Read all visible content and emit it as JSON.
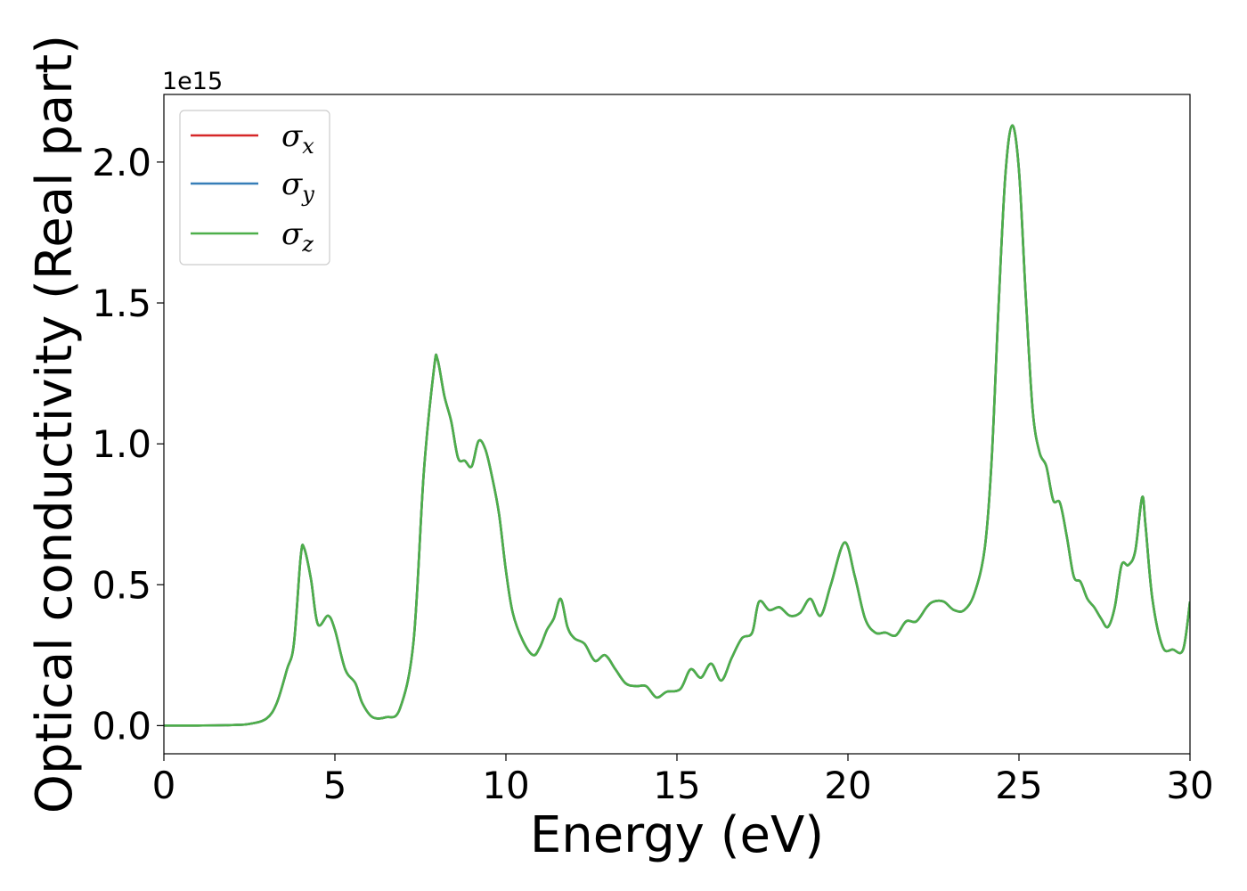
{
  "chart_data": {
    "type": "line",
    "xlabel": "Energy (eV)",
    "ylabel": "Optical conductivity (Real part)",
    "y_offset_text": "1e15",
    "xlim": [
      0,
      30
    ],
    "ylim": [
      -0.1,
      2.24
    ],
    "x_ticks": [
      0,
      5,
      10,
      15,
      20,
      25,
      30
    ],
    "x_tick_labels": [
      "0",
      "5",
      "10",
      "15",
      "20",
      "25",
      "30"
    ],
    "y_ticks": [
      0.0,
      0.5,
      1.0,
      1.5,
      2.0
    ],
    "y_tick_labels": [
      "0.0",
      "0.5",
      "1.0",
      "1.5",
      "2.0"
    ],
    "grid": false,
    "legend_position": "top-left",
    "colors": {
      "sigma_x": "#d62728",
      "sigma_y": "#377eb8",
      "sigma_z": "#4daf4a"
    },
    "legend": [
      {
        "symbol": "σ",
        "sub": "x",
        "color": "#d62728"
      },
      {
        "symbol": "σ",
        "sub": "y",
        "color": "#377eb8"
      },
      {
        "symbol": "σ",
        "sub": "z",
        "color": "#4daf4a"
      }
    ],
    "x": [
      0,
      1,
      2,
      2.5,
      3.0,
      3.3,
      3.6,
      3.8,
      4.0,
      4.1,
      4.3,
      4.5,
      4.8,
      5.0,
      5.3,
      5.6,
      5.8,
      6.1,
      6.5,
      6.9,
      7.3,
      7.6,
      7.9,
      8.0,
      8.2,
      8.4,
      8.6,
      8.8,
      9.0,
      9.2,
      9.4,
      9.6,
      9.8,
      10.0,
      10.2,
      10.5,
      10.8,
      11.0,
      11.2,
      11.4,
      11.6,
      11.8,
      12.0,
      12.3,
      12.6,
      12.9,
      13.2,
      13.5,
      13.8,
      14.1,
      14.4,
      14.7,
      15.1,
      15.4,
      15.7,
      16.0,
      16.3,
      16.6,
      16.9,
      17.2,
      17.4,
      17.7,
      18.0,
      18.3,
      18.6,
      18.9,
      19.2,
      19.5,
      19.9,
      20.2,
      20.5,
      20.8,
      21.1,
      21.4,
      21.7,
      22.0,
      22.3,
      22.5,
      22.8,
      23.1,
      23.4,
      23.7,
      24.0,
      24.2,
      24.4,
      24.6,
      24.8,
      25.0,
      25.2,
      25.4,
      25.6,
      25.8,
      26.0,
      26.2,
      26.4,
      26.6,
      26.8,
      27.0,
      27.2,
      27.4,
      27.6,
      27.8,
      28.0,
      28.2,
      28.4,
      28.6,
      28.7,
      28.9,
      29.2,
      29.5,
      29.8,
      30.0
    ],
    "series": [
      {
        "name": "σx",
        "values": [
          0,
          0.0003,
          0.002,
          0.006,
          0.025,
          0.08,
          0.2,
          0.29,
          0.6,
          0.63,
          0.52,
          0.36,
          0.39,
          0.34,
          0.2,
          0.15,
          0.08,
          0.03,
          0.03,
          0.06,
          0.3,
          0.9,
          1.27,
          1.3,
          1.17,
          1.08,
          0.95,
          0.94,
          0.92,
          1.01,
          0.98,
          0.88,
          0.75,
          0.55,
          0.4,
          0.3,
          0.25,
          0.28,
          0.34,
          0.38,
          0.45,
          0.35,
          0.31,
          0.29,
          0.23,
          0.25,
          0.2,
          0.15,
          0.14,
          0.14,
          0.1,
          0.12,
          0.13,
          0.2,
          0.17,
          0.22,
          0.16,
          0.24,
          0.31,
          0.33,
          0.44,
          0.41,
          0.42,
          0.39,
          0.4,
          0.45,
          0.39,
          0.5,
          0.65,
          0.53,
          0.38,
          0.33,
          0.33,
          0.32,
          0.37,
          0.37,
          0.42,
          0.44,
          0.44,
          0.41,
          0.41,
          0.47,
          0.63,
          0.94,
          1.48,
          1.95,
          2.13,
          1.97,
          1.52,
          1.12,
          0.97,
          0.92,
          0.8,
          0.79,
          0.67,
          0.53,
          0.51,
          0.45,
          0.42,
          0.38,
          0.35,
          0.42,
          0.57,
          0.57,
          0.62,
          0.81,
          0.71,
          0.45,
          0.28,
          0.27,
          0.27,
          0.44
        ]
      },
      {
        "name": "σy",
        "values": [
          0,
          0.0003,
          0.002,
          0.006,
          0.025,
          0.08,
          0.2,
          0.29,
          0.6,
          0.63,
          0.52,
          0.36,
          0.39,
          0.34,
          0.2,
          0.15,
          0.08,
          0.03,
          0.03,
          0.06,
          0.3,
          0.9,
          1.27,
          1.3,
          1.17,
          1.08,
          0.95,
          0.94,
          0.92,
          1.01,
          0.98,
          0.88,
          0.75,
          0.55,
          0.4,
          0.3,
          0.25,
          0.28,
          0.34,
          0.38,
          0.45,
          0.35,
          0.31,
          0.29,
          0.23,
          0.25,
          0.2,
          0.15,
          0.14,
          0.14,
          0.1,
          0.12,
          0.13,
          0.2,
          0.17,
          0.22,
          0.16,
          0.24,
          0.31,
          0.33,
          0.44,
          0.41,
          0.42,
          0.39,
          0.4,
          0.45,
          0.39,
          0.5,
          0.65,
          0.53,
          0.38,
          0.33,
          0.33,
          0.32,
          0.37,
          0.37,
          0.42,
          0.44,
          0.44,
          0.41,
          0.41,
          0.47,
          0.63,
          0.94,
          1.48,
          1.95,
          2.13,
          1.97,
          1.52,
          1.12,
          0.97,
          0.92,
          0.8,
          0.79,
          0.67,
          0.53,
          0.51,
          0.45,
          0.42,
          0.38,
          0.35,
          0.42,
          0.57,
          0.57,
          0.62,
          0.81,
          0.71,
          0.45,
          0.28,
          0.27,
          0.27,
          0.44
        ]
      },
      {
        "name": "σz",
        "values": [
          0,
          0.0003,
          0.002,
          0.006,
          0.025,
          0.08,
          0.2,
          0.29,
          0.6,
          0.63,
          0.52,
          0.36,
          0.39,
          0.34,
          0.2,
          0.15,
          0.08,
          0.03,
          0.03,
          0.06,
          0.3,
          0.9,
          1.27,
          1.3,
          1.17,
          1.08,
          0.95,
          0.94,
          0.92,
          1.01,
          0.98,
          0.88,
          0.75,
          0.55,
          0.4,
          0.3,
          0.25,
          0.28,
          0.34,
          0.38,
          0.45,
          0.35,
          0.31,
          0.29,
          0.23,
          0.25,
          0.2,
          0.15,
          0.14,
          0.14,
          0.1,
          0.12,
          0.13,
          0.2,
          0.17,
          0.22,
          0.16,
          0.24,
          0.31,
          0.33,
          0.44,
          0.41,
          0.42,
          0.39,
          0.4,
          0.45,
          0.39,
          0.5,
          0.65,
          0.53,
          0.38,
          0.33,
          0.33,
          0.32,
          0.37,
          0.37,
          0.42,
          0.44,
          0.44,
          0.41,
          0.41,
          0.47,
          0.63,
          0.94,
          1.48,
          1.95,
          2.13,
          1.97,
          1.52,
          1.12,
          0.97,
          0.92,
          0.8,
          0.79,
          0.67,
          0.53,
          0.51,
          0.45,
          0.42,
          0.38,
          0.35,
          0.42,
          0.57,
          0.57,
          0.62,
          0.81,
          0.71,
          0.45,
          0.28,
          0.27,
          0.27,
          0.44
        ]
      }
    ]
  }
}
